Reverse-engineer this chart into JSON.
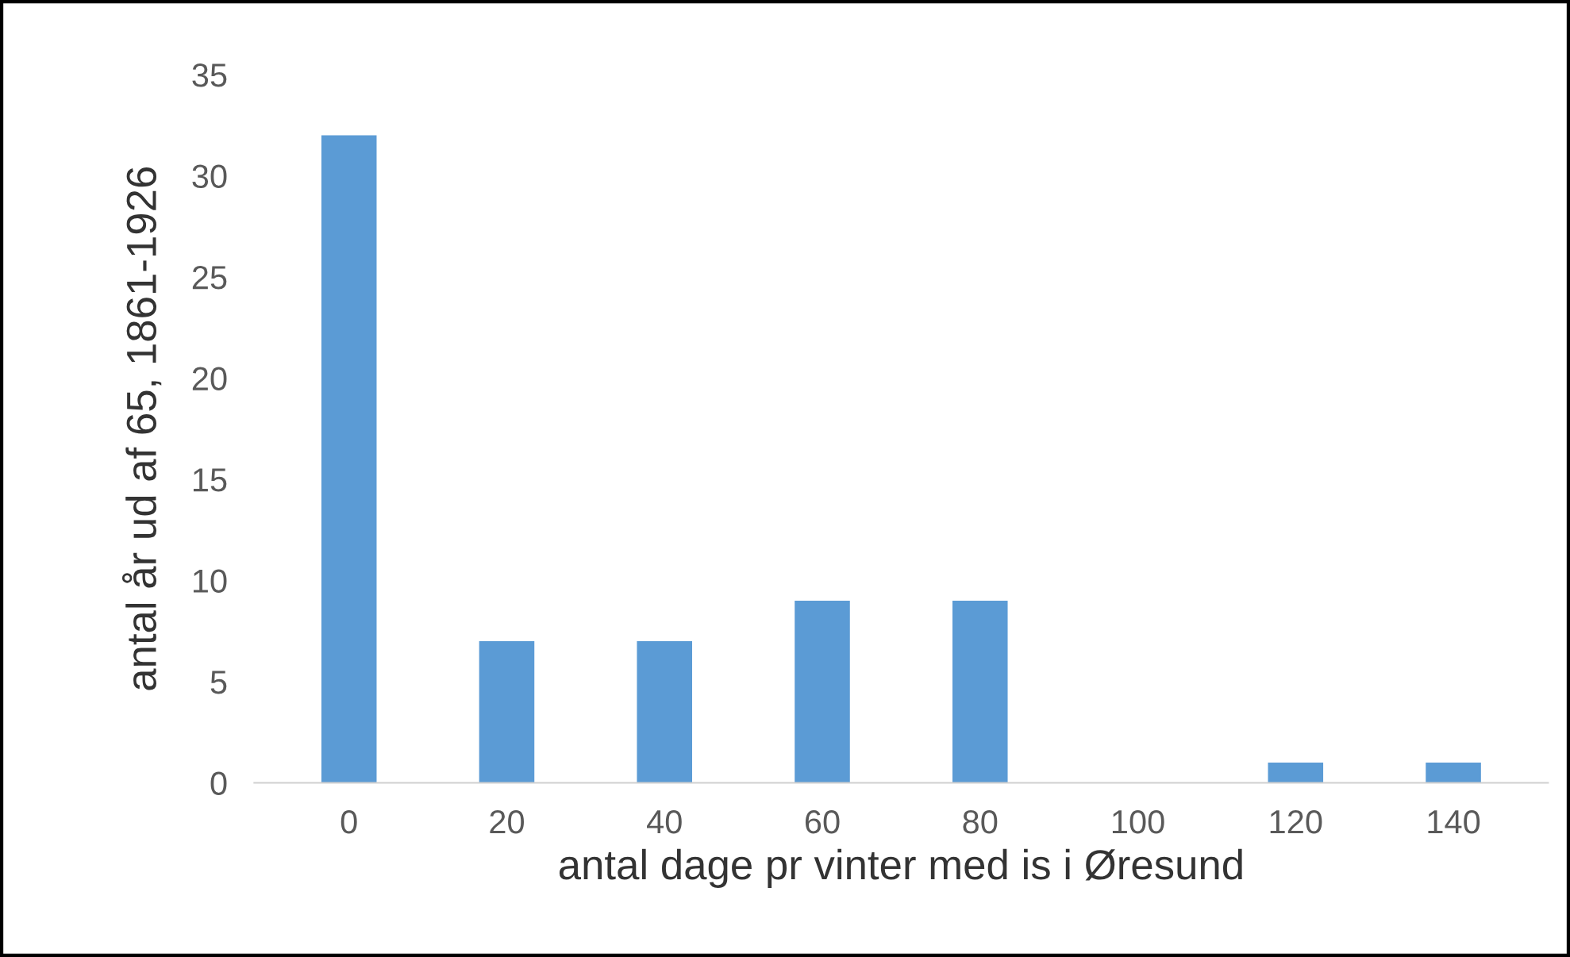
{
  "chart_data": {
    "type": "bar",
    "xlabel": "antal dage pr vinter med is i Øresund",
    "ylabel": "antal år ud af 65, 1861-1926",
    "categories": [
      "0",
      "20",
      "40",
      "60",
      "80",
      "100",
      "120",
      "140"
    ],
    "values": [
      32,
      7,
      7,
      9,
      9,
      0,
      1,
      1
    ],
    "color": "#5b9bd5",
    "ylim": [
      0,
      35
    ],
    "yticks": [
      0,
      5,
      10,
      15,
      20,
      25,
      30,
      35
    ],
    "grid": false,
    "legend": false
  }
}
